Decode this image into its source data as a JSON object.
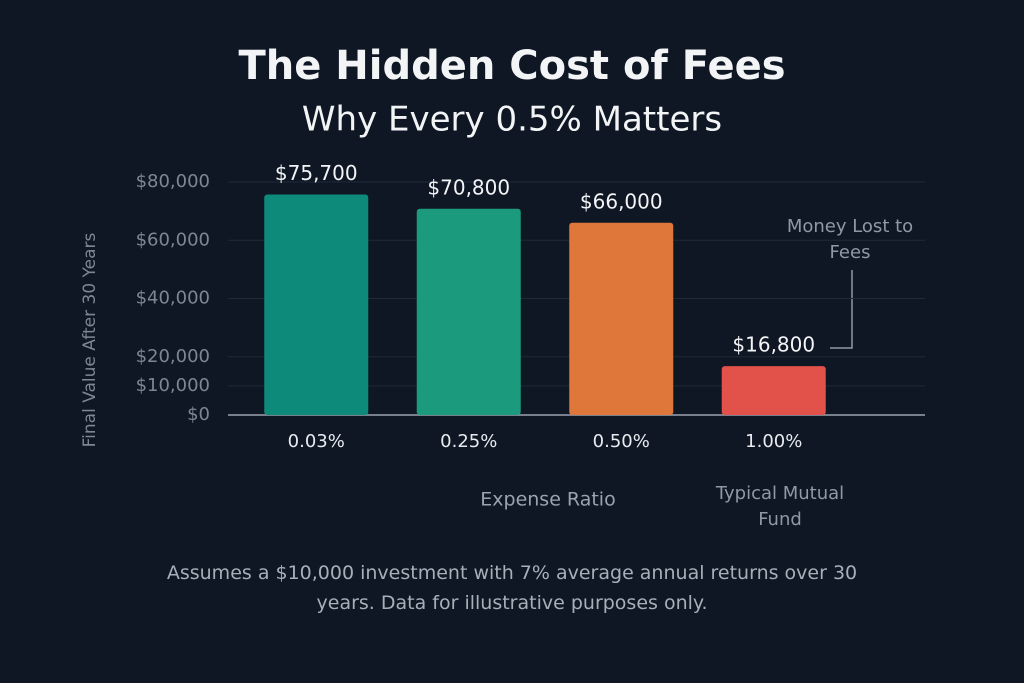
{
  "chart_data": {
    "type": "bar",
    "title": "The Hidden Cost of Fees",
    "subtitle": "Why Every 0.5% Matters",
    "x_label": "Expense Ratio",
    "y_label": "Final Value After 30 Years",
    "categories": [
      "0.03%",
      "0.25%",
      "0.50%",
      "1.00%"
    ],
    "values": [
      75700,
      70800,
      66000,
      16800
    ],
    "value_labels": [
      "$75,700",
      "$70,800",
      "$66,000",
      "$16,800"
    ],
    "colors": [
      "#0e8a7a",
      "#1b9a7d",
      "#e0773a",
      "#e2524a"
    ],
    "ylim": [
      0,
      80000
    ],
    "yticks": [
      {
        "value": 0,
        "label": "$0"
      },
      {
        "value": 10000,
        "label": "$10,000"
      },
      {
        "value": 20000,
        "label": "$20,000"
      },
      {
        "value": 40000,
        "label": "$40,000"
      },
      {
        "value": 60000,
        "label": "$60,000"
      },
      {
        "value": 80000,
        "label": "$80,000"
      }
    ],
    "grid": true,
    "annotations": [
      "Money Lost to Fees",
      "Typical Mutual Fund"
    ],
    "footnote": "Assumes a $10,000 investment with 7% average annual returns over 30 years. Data for illustrative purposes only."
  }
}
